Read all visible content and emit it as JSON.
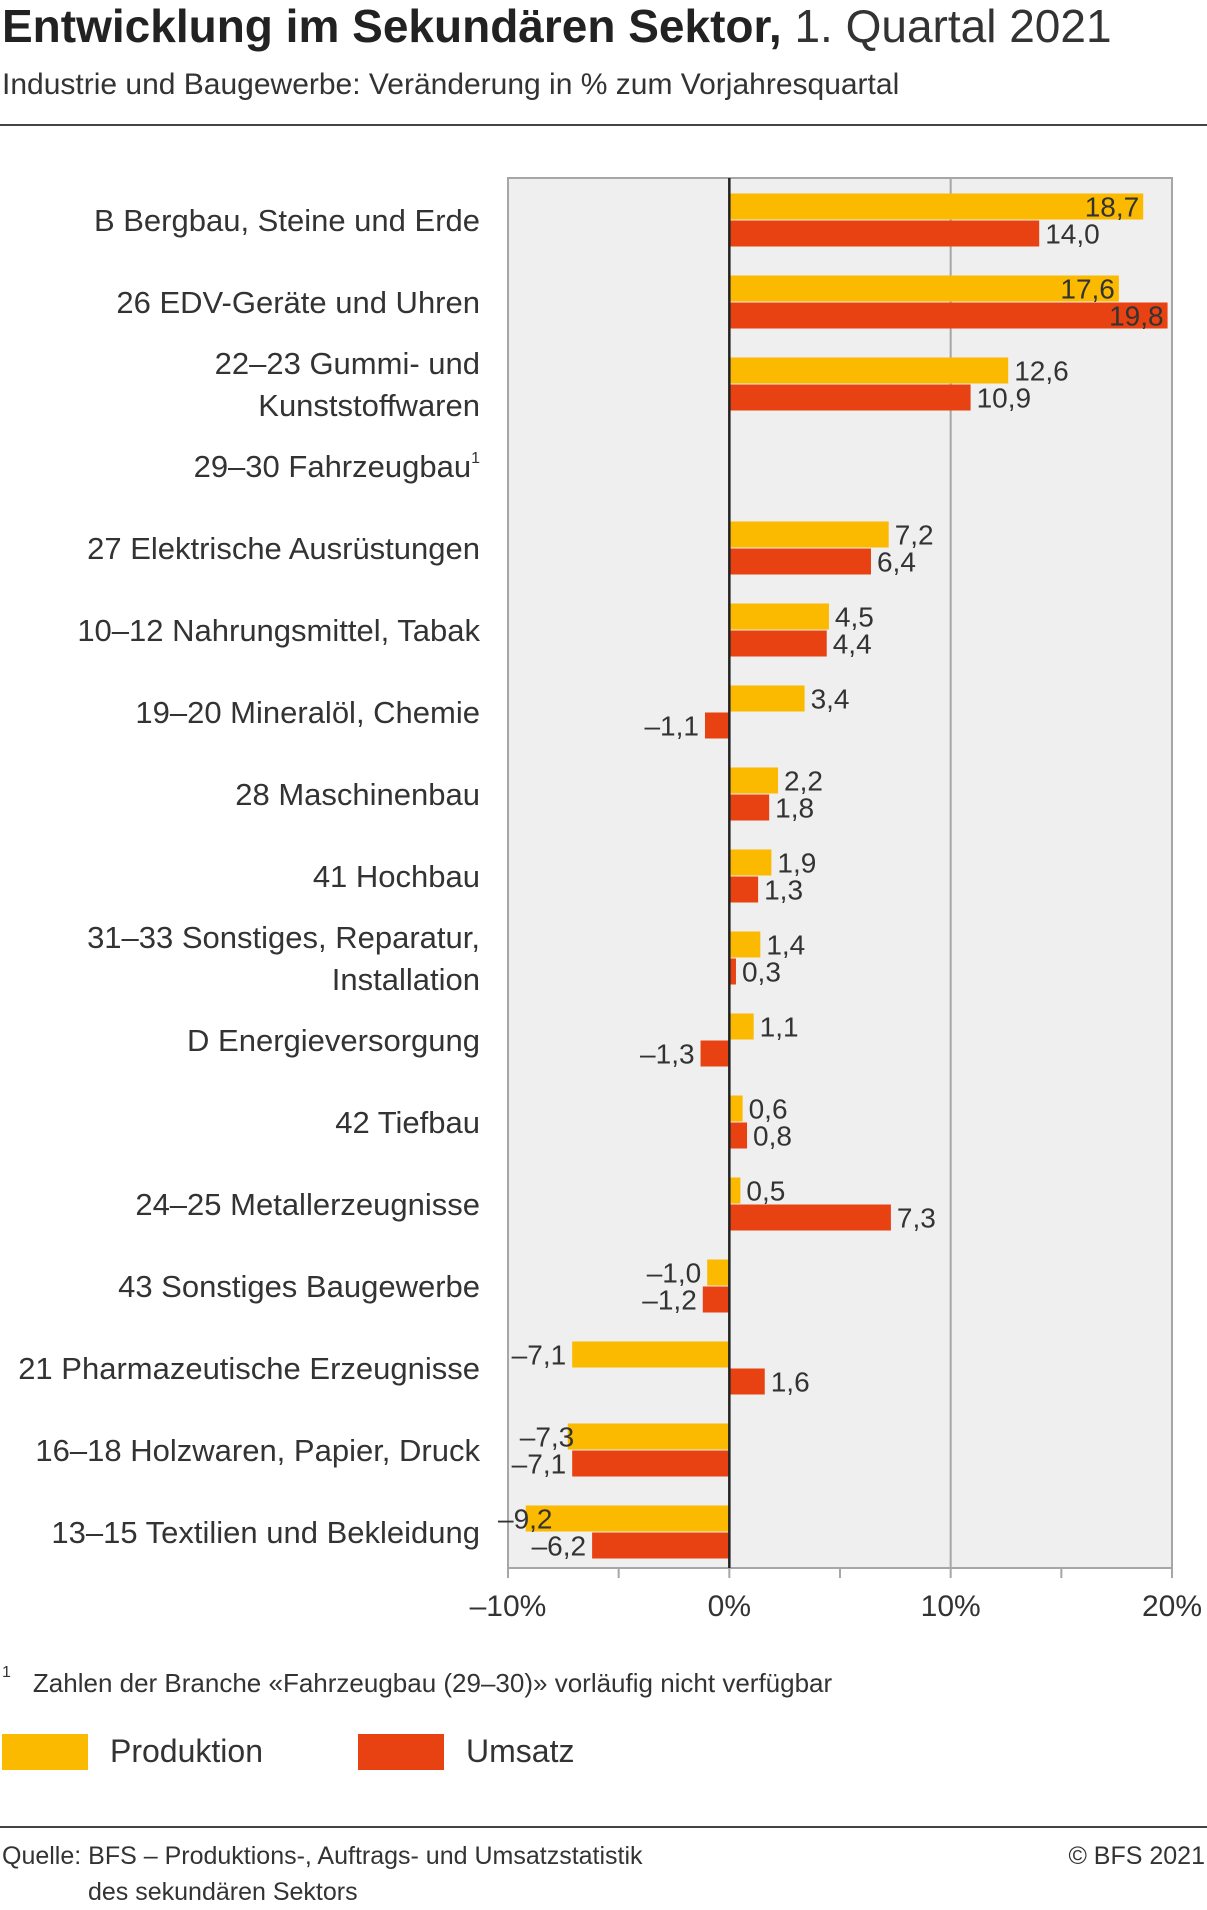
{
  "header": {
    "title_bold": "Entwicklung im Sekundären Sektor,",
    "title_regular": "1. Quartal 2021",
    "subtitle": "Industrie und Baugewerbe: Veränderung in % zum Vorjahresquartal"
  },
  "chart_data": {
    "type": "bar",
    "orientation": "horizontal",
    "xlim": [
      -10,
      20
    ],
    "x_ticks": [
      -10,
      0,
      10,
      20
    ],
    "x_tick_labels": [
      "–10%",
      "0%",
      "10%",
      "20%"
    ],
    "grid": true,
    "categories": [
      [
        "B Bergbau, Steine und Erde"
      ],
      [
        "26  EDV-Geräte und Uhren"
      ],
      [
        "22–23  Gummi- und",
        "Kunststoffwaren"
      ],
      [
        "29–30 Fahrzeugbau"
      ],
      [
        "27  Elektrische Ausrüstungen"
      ],
      [
        "10–12 Nahrungsmittel, Tabak"
      ],
      [
        "19–20 Mineralöl, Chemie"
      ],
      [
        "28 Maschinenbau"
      ],
      [
        "41 Hochbau"
      ],
      [
        "31–33 Sonstiges, Reparatur,",
        "Installation"
      ],
      [
        "D Energieversorgung"
      ],
      [
        "42 Tiefbau"
      ],
      [
        "24–25 Metallerzeugnisse"
      ],
      [
        "43 Sonstiges Baugewerbe"
      ],
      [
        "21 Pharmazeutische Erzeugnisse"
      ],
      [
        "16–18 Holzwaren, Papier, Druck"
      ],
      [
        "13–15 Textilien und Bekleidung"
      ]
    ],
    "category_footnote_marks": [
      "",
      "",
      "",
      "1",
      "",
      "",
      "",
      "",
      "",
      "",
      "",
      "",
      "",
      "",
      "",
      "",
      ""
    ],
    "series": [
      {
        "name": "Produktion",
        "color": "#FBBA00",
        "values": [
          18.7,
          17.6,
          12.6,
          null,
          7.2,
          4.5,
          3.4,
          2.2,
          1.9,
          1.4,
          1.1,
          0.6,
          0.5,
          -1.0,
          -7.1,
          -7.3,
          -9.2
        ],
        "labels": [
          "18,7",
          "17,6",
          "12,6",
          "",
          "7,2",
          "4,5",
          "3,4",
          "2,2",
          "1,9",
          "1,4",
          "1,1",
          "0,6",
          "0,5",
          "–1,0",
          "–7,1",
          "–7,3",
          "–9,2"
        ]
      },
      {
        "name": "Umsatz",
        "color": "#E84212",
        "values": [
          14.0,
          19.8,
          10.9,
          null,
          6.4,
          4.4,
          -1.1,
          1.8,
          1.3,
          0.3,
          -1.3,
          0.8,
          7.3,
          -1.2,
          1.6,
          -7.1,
          -6.2
        ],
        "labels": [
          "14,0",
          "19,8",
          "10,9",
          "",
          "6,4",
          "4,4",
          "–1,1",
          "1,8",
          "1,3",
          "0,3",
          "–1,3",
          "0,8",
          "7,3",
          "–1,2",
          "1,6",
          "–7,1",
          "–6,2"
        ]
      }
    ]
  },
  "footnote": {
    "mark": "1",
    "text": "Zahlen der Branche «Fahrzeugbau (29–30)» vorläufig nicht verfügbar"
  },
  "legend": {
    "produktion": "Produktion",
    "umsatz": "Umsatz",
    "produktion_color": "#FBBA00",
    "umsatz_color": "#E84212"
  },
  "footer": {
    "source_line1": "Quelle: BFS – Produktions-, Auftrags- und Umsatzstatistik",
    "source_line2": "des sekundären Sektors",
    "copyright": "© BFS 2021"
  }
}
